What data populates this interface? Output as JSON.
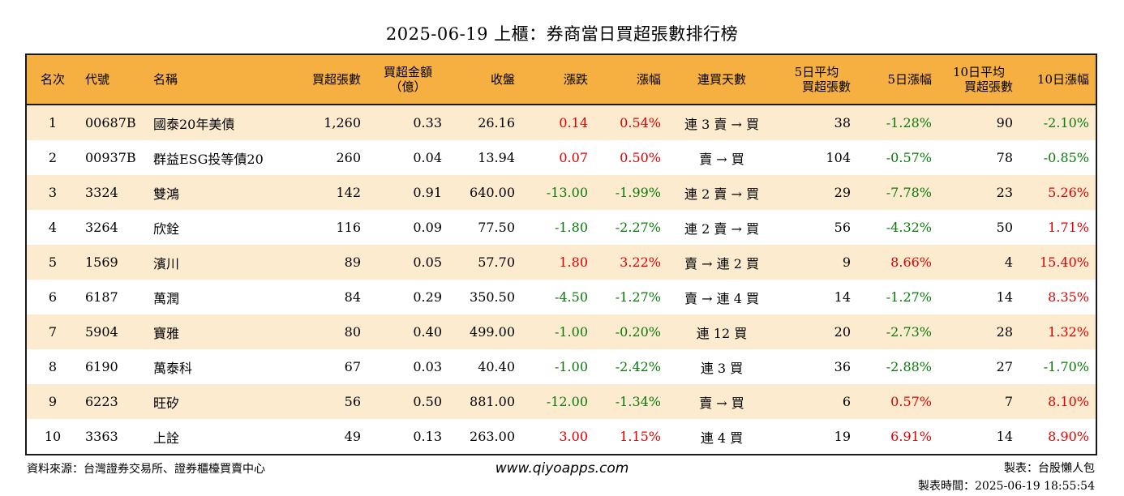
{
  "title": "2025-06-19 上櫃：券商當日買超張數排行榜",
  "headers": {
    "rank": "名次",
    "code": "代號",
    "name": "名稱",
    "net_buy_lots": "買超張數",
    "net_buy_amount_1": "買超金額",
    "net_buy_amount_2": "（億）",
    "close": "收盤",
    "change": "漲跌",
    "change_pct": "漲幅",
    "streak": "連買天數",
    "avg5_1": "5日平均",
    "avg5_2": "買超張數",
    "pct5": "5日漲幅",
    "avg10_1": "10日平均",
    "avg10_2": "買超張數",
    "pct10": "10日漲幅"
  },
  "rows": [
    {
      "rank": "1",
      "code": "00687B",
      "name": "國泰20年美債",
      "lots": "1,260",
      "amount": "0.33",
      "close": "26.16",
      "change": "0.14",
      "change_dir": "up",
      "pct": "0.54%",
      "pct_dir": "up",
      "streak": "連 3 賣 → 買",
      "avg5": "38",
      "pct5": "-1.28%",
      "pct5_dir": "dn",
      "avg10": "90",
      "pct10": "-2.10%",
      "pct10_dir": "dn"
    },
    {
      "rank": "2",
      "code": "00937B",
      "name": "群益ESG投等債20",
      "lots": "260",
      "amount": "0.04",
      "close": "13.94",
      "change": "0.07",
      "change_dir": "up",
      "pct": "0.50%",
      "pct_dir": "up",
      "streak": "賣 → 買",
      "avg5": "104",
      "pct5": "-0.57%",
      "pct5_dir": "dn",
      "avg10": "78",
      "pct10": "-0.85%",
      "pct10_dir": "dn"
    },
    {
      "rank": "3",
      "code": "3324",
      "name": "雙鴻",
      "lots": "142",
      "amount": "0.91",
      "close": "640.00",
      "change": "-13.00",
      "change_dir": "dn",
      "pct": "-1.99%",
      "pct_dir": "dn",
      "streak": "連 2 賣 → 買",
      "avg5": "29",
      "pct5": "-7.78%",
      "pct5_dir": "dn",
      "avg10": "23",
      "pct10": "5.26%",
      "pct10_dir": "up"
    },
    {
      "rank": "4",
      "code": "3264",
      "name": "欣銓",
      "lots": "116",
      "amount": "0.09",
      "close": "77.50",
      "change": "-1.80",
      "change_dir": "dn",
      "pct": "-2.27%",
      "pct_dir": "dn",
      "streak": "連 2 賣 → 買",
      "avg5": "56",
      "pct5": "-4.32%",
      "pct5_dir": "dn",
      "avg10": "50",
      "pct10": "1.71%",
      "pct10_dir": "up"
    },
    {
      "rank": "5",
      "code": "1569",
      "name": "濱川",
      "lots": "89",
      "amount": "0.05",
      "close": "57.70",
      "change": "1.80",
      "change_dir": "up",
      "pct": "3.22%",
      "pct_dir": "up",
      "streak": "賣 → 連 2 買",
      "avg5": "9",
      "pct5": "8.66%",
      "pct5_dir": "up",
      "avg10": "4",
      "pct10": "15.40%",
      "pct10_dir": "up"
    },
    {
      "rank": "6",
      "code": "6187",
      "name": "萬潤",
      "lots": "84",
      "amount": "0.29",
      "close": "350.50",
      "change": "-4.50",
      "change_dir": "dn",
      "pct": "-1.27%",
      "pct_dir": "dn",
      "streak": "賣 → 連 4 買",
      "avg5": "14",
      "pct5": "-1.27%",
      "pct5_dir": "dn",
      "avg10": "14",
      "pct10": "8.35%",
      "pct10_dir": "up"
    },
    {
      "rank": "7",
      "code": "5904",
      "name": "寶雅",
      "lots": "80",
      "amount": "0.40",
      "close": "499.00",
      "change": "-1.00",
      "change_dir": "dn",
      "pct": "-0.20%",
      "pct_dir": "dn",
      "streak": "連 12 買",
      "avg5": "20",
      "pct5": "-2.73%",
      "pct5_dir": "dn",
      "avg10": "28",
      "pct10": "1.32%",
      "pct10_dir": "up"
    },
    {
      "rank": "8",
      "code": "6190",
      "name": "萬泰科",
      "lots": "67",
      "amount": "0.03",
      "close": "40.40",
      "change": "-1.00",
      "change_dir": "dn",
      "pct": "-2.42%",
      "pct_dir": "dn",
      "streak": "連 3 買",
      "avg5": "36",
      "pct5": "-2.88%",
      "pct5_dir": "dn",
      "avg10": "27",
      "pct10": "-1.70%",
      "pct10_dir": "dn"
    },
    {
      "rank": "9",
      "code": "6223",
      "name": "旺矽",
      "lots": "56",
      "amount": "0.50",
      "close": "881.00",
      "change": "-12.00",
      "change_dir": "dn",
      "pct": "-1.34%",
      "pct_dir": "dn",
      "streak": "賣 → 買",
      "avg5": "6",
      "pct5": "0.57%",
      "pct5_dir": "up",
      "avg10": "7",
      "pct10": "8.10%",
      "pct10_dir": "up"
    },
    {
      "rank": "10",
      "code": "3363",
      "name": "上詮",
      "lots": "49",
      "amount": "0.13",
      "close": "263.00",
      "change": "3.00",
      "change_dir": "up",
      "pct": "1.15%",
      "pct_dir": "up",
      "streak": "連 4 買",
      "avg5": "19",
      "pct5": "6.91%",
      "pct5_dir": "up",
      "avg10": "14",
      "pct10": "8.90%",
      "pct10_dir": "up"
    }
  ],
  "footer": {
    "source": "資料來源：台灣證券交易所、證券櫃檯買賣中心",
    "website": "www.qiyoapps.com",
    "maker": "製表：台股懶人包",
    "time": "製表時間：2025-06-19 18:55:54"
  },
  "colors": {
    "header_bg": "#f5b041",
    "stripe_bg": "#fdebd0",
    "up": "#e00000",
    "down": "#0a7a0a"
  }
}
